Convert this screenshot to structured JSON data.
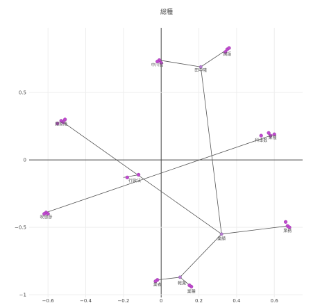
{
  "chart_data": {
    "type": "scatter",
    "title": "総種",
    "xlim": [
      -0.7,
      0.75
    ],
    "ylim": [
      -1.02,
      0.98
    ],
    "x_ticks": [
      -0.6,
      -0.4,
      -0.2,
      0,
      0.2,
      0.4,
      0.6
    ],
    "x_tick_labels": [
      "−0.6",
      "−0.4",
      "−0.2",
      "0",
      "0.2",
      "0.4",
      "0.6"
    ],
    "y_ticks": [
      -1,
      -0.5,
      0,
      0.5
    ],
    "y_tick_labels": [
      "−1",
      "−0.5",
      "0",
      "0.5"
    ],
    "grid": true,
    "edges": [
      [
        [
          -0.52,
          0.28
        ],
        [
          0.32,
          -0.55
        ]
      ],
      [
        [
          -0.61,
          -0.39
        ],
        [
          0.6,
          0.19
        ]
      ],
      [
        [
          0.32,
          -0.55
        ],
        [
          0.21,
          0.69
        ]
      ],
      [
        [
          0.21,
          0.69
        ],
        [
          -0.01,
          0.74
        ]
      ],
      [
        [
          0.21,
          0.69
        ],
        [
          0.35,
          0.82
        ]
      ],
      [
        [
          0.32,
          -0.55
        ],
        [
          0.67,
          -0.49
        ]
      ],
      [
        [
          0.32,
          -0.55
        ],
        [
          0.1,
          -0.87
        ]
      ],
      [
        [
          0.1,
          -0.87
        ],
        [
          -0.02,
          -0.89
        ]
      ],
      [
        [
          0.1,
          -0.87
        ],
        [
          0.16,
          -0.94
        ]
      ],
      [
        [
          -0.2,
          -0.13
        ],
        [
          -0.12,
          -0.11
        ]
      ]
    ],
    "points": [
      {
        "x": -0.52,
        "y": 0.28
      },
      {
        "x": -0.53,
        "y": 0.29
      },
      {
        "x": -0.51,
        "y": 0.3
      },
      {
        "x": -0.55,
        "y": 0.27
      },
      {
        "x": -0.61,
        "y": -0.39
      },
      {
        "x": -0.6,
        "y": -0.4
      },
      {
        "x": -0.62,
        "y": -0.4
      },
      {
        "x": -0.01,
        "y": 0.74
      },
      {
        "x": 0.0,
        "y": 0.72
      },
      {
        "x": -0.02,
        "y": 0.73
      },
      {
        "x": 0.35,
        "y": 0.82
      },
      {
        "x": 0.34,
        "y": 0.8
      },
      {
        "x": 0.36,
        "y": 0.83
      },
      {
        "x": 0.6,
        "y": 0.19
      },
      {
        "x": 0.58,
        "y": 0.18
      },
      {
        "x": 0.53,
        "y": 0.18
      },
      {
        "x": 0.57,
        "y": 0.2
      },
      {
        "x": 0.67,
        "y": -0.49
      },
      {
        "x": 0.66,
        "y": -0.46
      },
      {
        "x": 0.68,
        "y": -0.5
      },
      {
        "x": -0.02,
        "y": -0.89
      },
      {
        "x": -0.03,
        "y": -0.9
      },
      {
        "x": 0.16,
        "y": -0.94
      },
      {
        "x": 0.15,
        "y": -0.93
      },
      {
        "x": -0.18,
        "y": -0.13
      },
      {
        "x": -0.12,
        "y": -0.11
      },
      {
        "x": 0.21,
        "y": 0.69
      },
      {
        "x": 0.32,
        "y": -0.55
      },
      {
        "x": 0.1,
        "y": -0.87
      }
    ],
    "annotations": [
      {
        "x": -0.53,
        "y": 0.27,
        "text": "謝家隆"
      },
      {
        "x": -0.61,
        "y": -0.42,
        "text": "吹啓彦"
      },
      {
        "x": -0.02,
        "y": 0.71,
        "text": "中川哲"
      },
      {
        "x": 0.21,
        "y": 0.67,
        "text": "田中隆"
      },
      {
        "x": 0.35,
        "y": 0.79,
        "text": "国語"
      },
      {
        "x": 0.53,
        "y": 0.15,
        "text": "科本数"
      },
      {
        "x": 0.59,
        "y": 0.17,
        "text": "業種"
      },
      {
        "x": 0.67,
        "y": -0.52,
        "text": "業務"
      },
      {
        "x": 0.32,
        "y": -0.58,
        "text": "業績"
      },
      {
        "x": 0.11,
        "y": -0.91,
        "text": "軽業"
      },
      {
        "x": -0.02,
        "y": -0.92,
        "text": "業者"
      },
      {
        "x": 0.16,
        "y": -0.97,
        "text": "業種"
      },
      {
        "x": -0.14,
        "y": -0.15,
        "text": "行政法"
      }
    ]
  }
}
